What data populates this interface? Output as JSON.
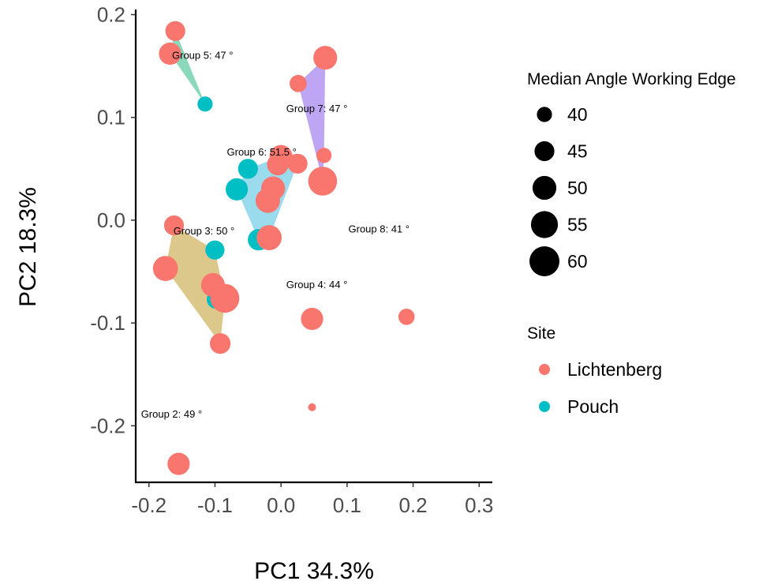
{
  "chart_data": {
    "type": "scatter",
    "xlabel": "PC1 34.3%",
    "ylabel": "PC2 18.3%",
    "xlim": [
      -0.22,
      0.32
    ],
    "ylim": [
      -0.255,
      0.205
    ],
    "x_ticks": [
      {
        "value": -0.2,
        "label": "-0.2"
      },
      {
        "value": -0.1,
        "label": "-0.1"
      },
      {
        "value": 0.0,
        "label": "0.0"
      },
      {
        "value": 0.1,
        "label": "0.1"
      },
      {
        "value": 0.2,
        "label": "0.2"
      },
      {
        "value": 0.3,
        "label": "0.3"
      }
    ],
    "y_ticks": [
      {
        "value": -0.2,
        "label": "-0.2"
      },
      {
        "value": -0.1,
        "label": "-0.1"
      },
      {
        "value": 0.0,
        "label": "0.0"
      },
      {
        "value": 0.1,
        "label": "0.1"
      },
      {
        "value": 0.2,
        "label": "0.2"
      }
    ],
    "grid": false,
    "site_colors": {
      "Lichtenberg": "#F8766D",
      "Pouch": "#00BFC4"
    },
    "size_range": {
      "min_value": 35,
      "max_value": 60
    },
    "hulls": [
      {
        "group": "Group 5",
        "color": "#7FD4B4",
        "points": [
          [
            -0.16,
            0.184
          ],
          [
            -0.168,
            0.162
          ],
          [
            -0.115,
            0.113
          ]
        ]
      },
      {
        "group": "Group 7",
        "color": "#B79CF4",
        "points": [
          [
            0.067,
            0.158
          ],
          [
            0.026,
            0.133
          ],
          [
            0.063,
            0.038
          ],
          [
            0.065,
            0.063
          ]
        ]
      },
      {
        "group": "Group 6",
        "color": "#8FD7EC",
        "points": [
          [
            -0.05,
            0.05
          ],
          [
            0.0,
            0.062
          ],
          [
            0.025,
            0.055
          ],
          [
            -0.018,
            -0.017
          ],
          [
            -0.034,
            -0.019
          ],
          [
            -0.067,
            0.03
          ]
        ]
      },
      {
        "group": "Group 3",
        "color": "#D8C27E",
        "points": [
          [
            -0.162,
            -0.005
          ],
          [
            -0.1,
            -0.029
          ],
          [
            -0.085,
            -0.076
          ],
          [
            -0.092,
            -0.12
          ],
          [
            -0.175,
            -0.047
          ]
        ]
      }
    ],
    "points": [
      {
        "x": -0.16,
        "y": 0.184,
        "size": 45,
        "site": "Lichtenberg"
      },
      {
        "x": -0.168,
        "y": 0.162,
        "size": 48,
        "site": "Lichtenberg"
      },
      {
        "x": -0.115,
        "y": 0.113,
        "size": 40,
        "site": "Pouch"
      },
      {
        "x": 0.067,
        "y": 0.158,
        "size": 50,
        "site": "Lichtenberg"
      },
      {
        "x": 0.026,
        "y": 0.133,
        "size": 42,
        "site": "Lichtenberg"
      },
      {
        "x": 0.065,
        "y": 0.063,
        "size": 40,
        "site": "Lichtenberg"
      },
      {
        "x": 0.063,
        "y": 0.038,
        "size": 58,
        "site": "Lichtenberg"
      },
      {
        "x": 0.0,
        "y": 0.062,
        "size": 49,
        "site": "Lichtenberg"
      },
      {
        "x": -0.005,
        "y": 0.054,
        "size": 47,
        "site": "Lichtenberg"
      },
      {
        "x": 0.025,
        "y": 0.055,
        "size": 45,
        "site": "Lichtenberg"
      },
      {
        "x": -0.05,
        "y": 0.05,
        "size": 45,
        "site": "Pouch"
      },
      {
        "x": -0.067,
        "y": 0.03,
        "size": 48,
        "site": "Pouch"
      },
      {
        "x": -0.012,
        "y": 0.031,
        "size": 50,
        "site": "Lichtenberg"
      },
      {
        "x": -0.02,
        "y": 0.019,
        "size": 51,
        "site": "Lichtenberg"
      },
      {
        "x": -0.034,
        "y": -0.019,
        "size": 47,
        "site": "Pouch"
      },
      {
        "x": -0.018,
        "y": -0.017,
        "size": 52,
        "site": "Lichtenberg"
      },
      {
        "x": -0.162,
        "y": -0.005,
        "size": 45,
        "site": "Lichtenberg"
      },
      {
        "x": -0.1,
        "y": -0.029,
        "size": 44,
        "site": "Pouch"
      },
      {
        "x": -0.175,
        "y": -0.047,
        "size": 52,
        "site": "Lichtenberg"
      },
      {
        "x": -0.098,
        "y": -0.077,
        "size": 44,
        "site": "Pouch"
      },
      {
        "x": -0.103,
        "y": -0.063,
        "size": 50,
        "site": "Lichtenberg"
      },
      {
        "x": -0.085,
        "y": -0.076,
        "size": 58,
        "site": "Lichtenberg"
      },
      {
        "x": -0.092,
        "y": -0.12,
        "size": 46,
        "site": "Lichtenberg"
      },
      {
        "x": 0.047,
        "y": -0.096,
        "size": 48,
        "site": "Lichtenberg"
      },
      {
        "x": 0.19,
        "y": -0.094,
        "size": 41,
        "site": "Lichtenberg"
      },
      {
        "x": 0.047,
        "y": -0.182,
        "size": 35,
        "site": "Lichtenberg"
      },
      {
        "x": -0.155,
        "y": -0.237,
        "size": 48,
        "site": "Lichtenberg"
      }
    ],
    "annotations": [
      {
        "text": "Group 5: 47 °",
        "x": -0.165,
        "y": 0.157
      },
      {
        "text": "Group 7: 47 °",
        "x": 0.008,
        "y": 0.105
      },
      {
        "text": "Group 6: 51.5 °",
        "x": -0.082,
        "y": 0.063
      },
      {
        "text": "Group 3: 50 °",
        "x": -0.163,
        "y": -0.014
      },
      {
        "text": "Group 8: 41 °",
        "x": 0.102,
        "y": -0.012
      },
      {
        "text": "Group 4: 44 °",
        "x": 0.008,
        "y": -0.066
      },
      {
        "text": "Group 2: 49 °",
        "x": -0.212,
        "y": -0.192
      }
    ],
    "legend": {
      "placement": "right",
      "size_title": "Median Angle Working Edge",
      "size_entries": [
        {
          "label": "40",
          "value": 40
        },
        {
          "label": "45",
          "value": 45
        },
        {
          "label": "50",
          "value": 50
        },
        {
          "label": "55",
          "value": 55
        },
        {
          "label": "60",
          "value": 60
        }
      ],
      "color_title": "Site",
      "color_entries": [
        {
          "label": "Lichtenberg",
          "site": "Lichtenberg"
        },
        {
          "label": "Pouch",
          "site": "Pouch"
        }
      ]
    }
  }
}
